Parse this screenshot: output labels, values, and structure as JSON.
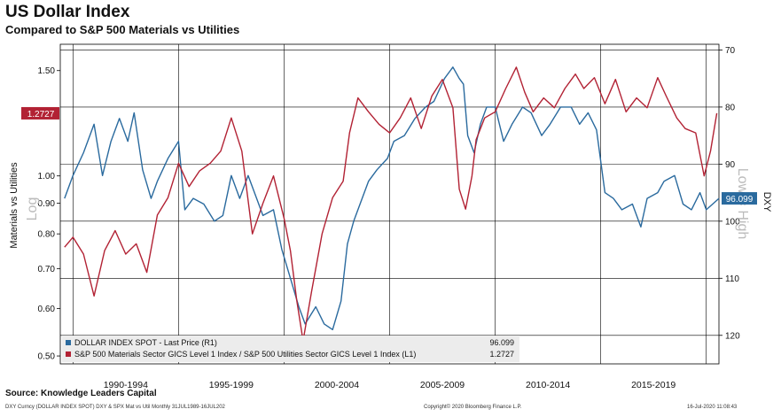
{
  "title": "US Dollar Index",
  "subtitle": "Compared to S&P 500 Materials vs Utilities",
  "source": "Source:  Knowledge Leaders Capital",
  "footer": {
    "left": "DXY Curncy (DOLLAR INDEX SPOT) DXY & SPX Mat vs Util  Monthly 31JUL1989-16JUL202",
    "center": "Copyright© 2020 Bloomberg Finance L.P.",
    "right": "16-Jul-2020 11:08:43"
  },
  "colors": {
    "usd": "#2a6a9e",
    "ratio": "#b22234",
    "grid": "#000000"
  },
  "chart_data": {
    "type": "line",
    "ylabel_left": "Materials vs Utilities",
    "ylabel_right": "DXY",
    "left_scale_label": "Log",
    "right_scale_label": "Low = High",
    "x_ticks": [
      "1990-1994",
      "1995-1999",
      "2000-2004",
      "2005-2009",
      "2010-2014",
      "2015-2019"
    ],
    "left_ticks": [
      "1.50",
      "1.00",
      "0.90",
      "0.80",
      "0.70",
      "0.60",
      "0.50"
    ],
    "left_tick_values": [
      1.5,
      1.0,
      0.9,
      0.8,
      0.7,
      0.6,
      0.5
    ],
    "left_ylim": [
      0.485,
      1.66
    ],
    "right_ticks": [
      "70",
      "80",
      "90",
      "100",
      "110",
      "120"
    ],
    "right_tick_values": [
      70,
      80,
      90,
      100,
      110,
      120
    ],
    "right_ylim": [
      69,
      125
    ],
    "xlim": [
      1989.4,
      2020.6
    ],
    "current_left_label": "1.2727",
    "current_right_label": "96.099",
    "legend": [
      {
        "name": "DOLLAR INDEX SPOT - Last Price (R1)",
        "value": "96.099"
      },
      {
        "name": "S&P 500 Materials Sector GICS Level 1 Index / S&P 500 Utilities Sector GICS Level 1 Index (L1)",
        "value": "1.2727"
      }
    ],
    "series": [
      {
        "name": "DOLLAR INDEX SPOT - Last Price (R1)",
        "axis": "right",
        "x": [
          1989.6,
          1990.0,
          1990.5,
          1991.0,
          1991.4,
          1991.8,
          1992.2,
          1992.6,
          1992.9,
          1993.3,
          1993.7,
          1994.0,
          1994.5,
          1995.0,
          1995.3,
          1995.7,
          1996.2,
          1996.7,
          1997.1,
          1997.5,
          1997.9,
          1998.3,
          1998.7,
          1999.0,
          1999.5,
          1999.9,
          2000.3,
          2000.7,
          2001.0,
          2001.5,
          2001.9,
          2002.3,
          2002.7,
          2003.0,
          2003.3,
          2003.7,
          2004.0,
          2004.4,
          2004.9,
          2005.2,
          2005.7,
          2006.2,
          2006.7,
          2007.1,
          2007.6,
          2008.0,
          2008.3,
          2008.5,
          2008.7,
          2009.0,
          2009.3,
          2009.6,
          2010.0,
          2010.4,
          2010.8,
          2011.3,
          2011.7,
          2012.2,
          2012.6,
          2013.1,
          2013.6,
          2014.0,
          2014.4,
          2014.8,
          2015.2,
          2015.6,
          2016.0,
          2016.5,
          2016.9,
          2017.2,
          2017.7,
          2018.0,
          2018.5,
          2018.9,
          2019.3,
          2019.7,
          2020.0,
          2020.3,
          2020.6
        ],
        "values": [
          96,
          92,
          88,
          83,
          92,
          86,
          82,
          86,
          81,
          91,
          96,
          93,
          89,
          86,
          98,
          96,
          97,
          100,
          99,
          92,
          96,
          92,
          96,
          99,
          98,
          105,
          110,
          115,
          118,
          115,
          118,
          119,
          114,
          104,
          100,
          96,
          93,
          91,
          89,
          86,
          85,
          82,
          80,
          79,
          75,
          73,
          75,
          76,
          85,
          88,
          83,
          80,
          80,
          86,
          83,
          80,
          81,
          85,
          83,
          80,
          80,
          83,
          81,
          84,
          95,
          96,
          98,
          97,
          101,
          96,
          95,
          93,
          92,
          97,
          98,
          95,
          98,
          97,
          96
        ]
      },
      {
        "name": "S&P 500 Materials / Utilities (L1)",
        "axis": "left",
        "x": [
          1989.6,
          1990.0,
          1990.5,
          1991.0,
          1991.5,
          1992.0,
          1992.5,
          1993.0,
          1993.5,
          1994.0,
          1994.5,
          1995.0,
          1995.5,
          1996.0,
          1996.5,
          1997.0,
          1997.5,
          1998.0,
          1998.5,
          1999.0,
          1999.5,
          2000.0,
          2000.3,
          2000.6,
          2000.9,
          2001.3,
          2001.8,
          2002.3,
          2002.8,
          2003.1,
          2003.5,
          2004.0,
          2004.5,
          2005.0,
          2005.5,
          2006.0,
          2006.5,
          2007.0,
          2007.5,
          2008.0,
          2008.3,
          2008.6,
          2008.9,
          2009.1,
          2009.5,
          2010.0,
          2010.5,
          2011.0,
          2011.4,
          2011.8,
          2012.3,
          2012.8,
          2013.3,
          2013.8,
          2014.2,
          2014.7,
          2015.2,
          2015.7,
          2016.2,
          2016.7,
          2017.2,
          2017.7,
          2018.1,
          2018.6,
          2019.0,
          2019.5,
          2019.9,
          2020.2,
          2020.5
        ],
        "values": [
          0.76,
          0.79,
          0.74,
          0.63,
          0.75,
          0.81,
          0.74,
          0.77,
          0.69,
          0.86,
          0.92,
          1.05,
          0.96,
          1.02,
          1.05,
          1.1,
          1.25,
          1.1,
          0.8,
          0.9,
          1.0,
          0.85,
          0.75,
          0.62,
          0.53,
          0.64,
          0.8,
          0.92,
          0.98,
          1.18,
          1.35,
          1.28,
          1.22,
          1.18,
          1.25,
          1.35,
          1.2,
          1.36,
          1.45,
          1.3,
          0.95,
          0.88,
          1.0,
          1.15,
          1.25,
          1.28,
          1.4,
          1.52,
          1.38,
          1.28,
          1.35,
          1.3,
          1.4,
          1.48,
          1.4,
          1.46,
          1.32,
          1.45,
          1.28,
          1.35,
          1.3,
          1.46,
          1.36,
          1.25,
          1.2,
          1.18,
          1.0,
          1.1,
          1.2727
        ]
      }
    ]
  }
}
